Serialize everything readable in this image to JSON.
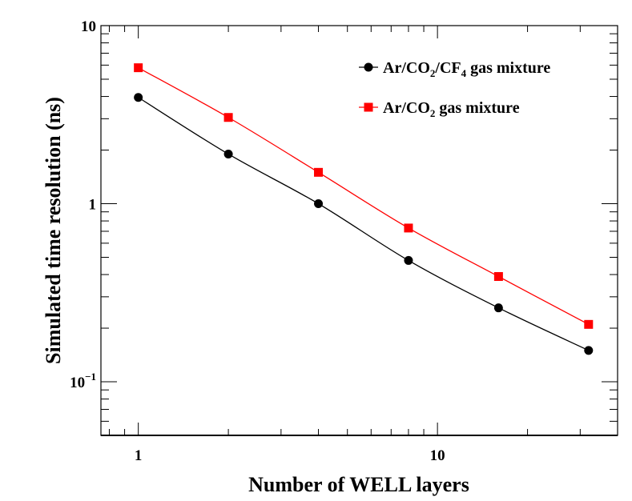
{
  "chart_data": {
    "type": "line",
    "x_scale": "log",
    "y_scale": "log",
    "xlabel": "Number of WELL layers",
    "ylabel": "Simulated time resolution (ns)",
    "xlim": [
      0.75,
      40
    ],
    "ylim": [
      0.05,
      10
    ],
    "x_ticks": [
      {
        "value": 1,
        "label": "1"
      },
      {
        "value": 10,
        "label": "10"
      }
    ],
    "y_ticks": [
      {
        "value": 10,
        "mantissa": "10",
        "exp": ""
      },
      {
        "value": 1,
        "mantissa": "1",
        "exp": ""
      },
      {
        "value": 0.1,
        "mantissa": "10",
        "exp": "−1"
      }
    ],
    "series": [
      {
        "name": "Ar/CO2/CF4 gas mixture",
        "legend_parts": [
          {
            "text": "Ar/CO"
          },
          {
            "text": "2",
            "sub": true
          },
          {
            "text": "/CF"
          },
          {
            "text": "4",
            "sub": true
          },
          {
            "text": " gas mixture"
          }
        ],
        "color": "#000000",
        "marker": "circle",
        "x": [
          1,
          2,
          4,
          8,
          16,
          32
        ],
        "y": [
          3.95,
          1.9,
          1.0,
          0.48,
          0.26,
          0.15
        ]
      },
      {
        "name": "Ar/CO2 gas mixture",
        "legend_parts": [
          {
            "text": "Ar/CO"
          },
          {
            "text": "2",
            "sub": true
          },
          {
            "text": " gas mixture"
          }
        ],
        "color": "#ff0000",
        "marker": "square",
        "x": [
          1,
          2,
          4,
          8,
          16,
          32
        ],
        "y": [
          5.8,
          3.05,
          1.5,
          0.73,
          0.39,
          0.21
        ]
      }
    ],
    "legend_position": "top-right",
    "grid": false
  }
}
